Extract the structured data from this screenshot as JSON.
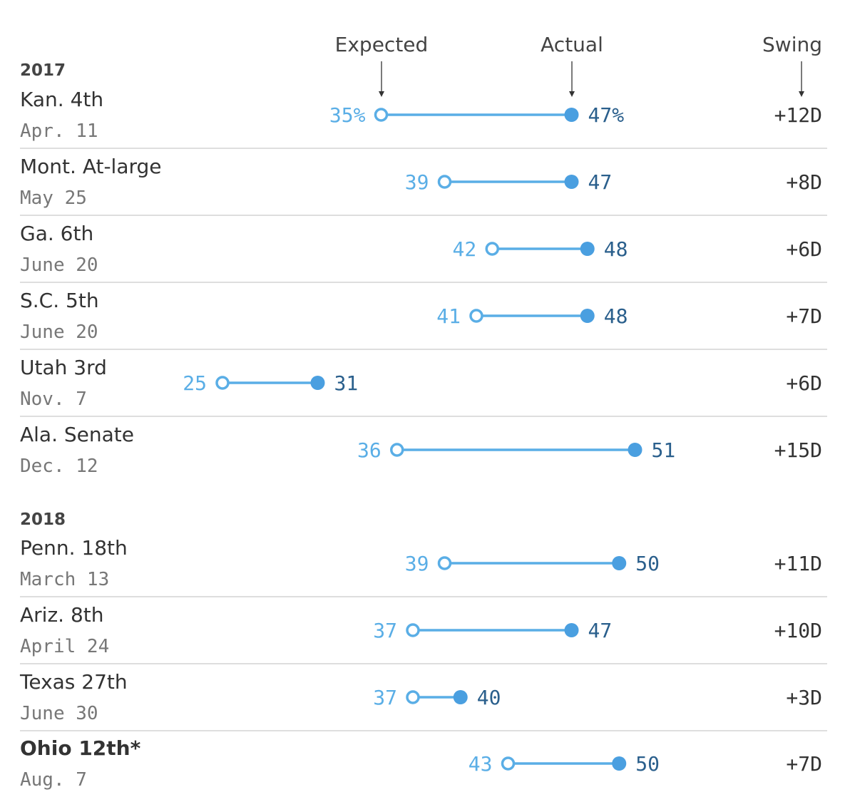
{
  "chart_data": {
    "type": "dumbbell",
    "headers": {
      "expected": "Expected",
      "actual": "Actual",
      "swing": "Swing"
    },
    "colors": {
      "expected": "#5aaee6",
      "actual": "#4a9fe0",
      "actual_label": "#2a5f8c",
      "divider": "#d4d4d4"
    },
    "value_suffix_first_row": "%",
    "groups": [
      {
        "year": "2017",
        "rows": [
          {
            "race": "Kan. 4th",
            "date": "Apr. 11",
            "expected": 35,
            "actual": 47,
            "expected_label": "35%",
            "actual_label": "47%",
            "swing": "+12D",
            "bold": false
          },
          {
            "race": "Mont. At-large",
            "date": "May 25",
            "expected": 39,
            "actual": 47,
            "expected_label": "39",
            "actual_label": "47",
            "swing": "+8D",
            "bold": false
          },
          {
            "race": "Ga. 6th",
            "date": "June 20",
            "expected": 42,
            "actual": 48,
            "expected_label": "42",
            "actual_label": "48",
            "swing": "+6D",
            "bold": false
          },
          {
            "race": "S.C. 5th",
            "date": "June 20",
            "expected": 41,
            "actual": 48,
            "expected_label": "41",
            "actual_label": "48",
            "swing": "+7D",
            "bold": false
          },
          {
            "race": "Utah 3rd",
            "date": "Nov. 7",
            "expected": 25,
            "actual": 31,
            "expected_label": "25",
            "actual_label": "31",
            "swing": "+6D",
            "bold": false
          },
          {
            "race": "Ala. Senate",
            "date": "Dec. 12",
            "expected": 36,
            "actual": 51,
            "expected_label": "36",
            "actual_label": "51",
            "swing": "+15D",
            "bold": false
          }
        ]
      },
      {
        "year": "2018",
        "rows": [
          {
            "race": "Penn. 18th",
            "date": "March 13",
            "expected": 39,
            "actual": 50,
            "expected_label": "39",
            "actual_label": "50",
            "swing": "+11D",
            "bold": false
          },
          {
            "race": "Ariz. 8th",
            "date": "April 24",
            "expected": 37,
            "actual": 47,
            "expected_label": "37",
            "actual_label": "47",
            "swing": "+10D",
            "bold": false
          },
          {
            "race": "Texas 27th",
            "date": "June 30",
            "expected": 37,
            "actual": 40,
            "expected_label": "37",
            "actual_label": "40",
            "swing": "+3D",
            "bold": false
          },
          {
            "race": "Ohio 12th*",
            "date": "Aug. 7",
            "expected": 43,
            "actual": 50,
            "expected_label": "43",
            "actual_label": "50",
            "swing": "+7D",
            "bold": true
          }
        ]
      }
    ]
  }
}
